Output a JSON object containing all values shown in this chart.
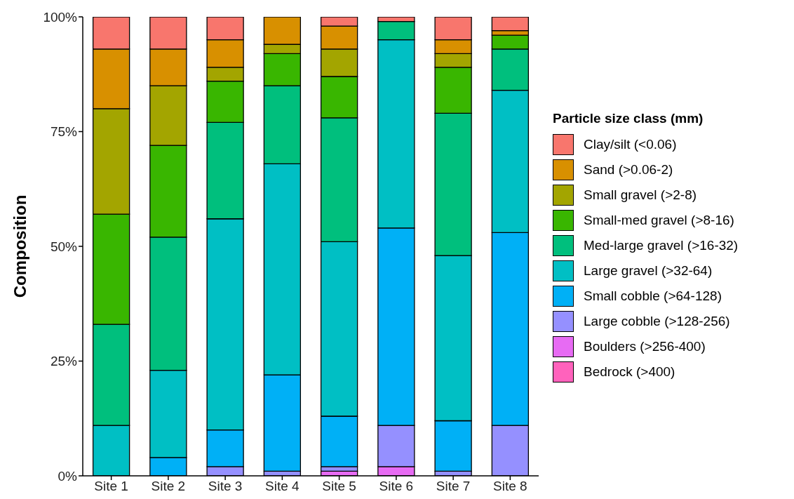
{
  "chart_data": {
    "type": "bar",
    "stacked": true,
    "ylabel": "Composition",
    "legend_title": "Particle size class (mm)",
    "legend": "right",
    "grid": false,
    "categories": [
      "Site 1",
      "Site 2",
      "Site 3",
      "Site 4",
      "Site 5",
      "Site 6",
      "Site 7",
      "Site 8"
    ],
    "ylim": [
      0,
      100
    ],
    "yticks": [
      {
        "value": 0,
        "label": "0%"
      },
      {
        "value": 25,
        "label": "25%"
      },
      {
        "value": 50,
        "label": "50%"
      },
      {
        "value": 75,
        "label": "75%"
      },
      {
        "value": 100,
        "label": "100%"
      }
    ],
    "series": [
      {
        "name": "Bedrock (>400)",
        "color": "#ff62bc",
        "values": [
          0,
          0,
          0,
          0,
          0,
          0,
          0,
          0
        ]
      },
      {
        "name": "Boulders (>256-400)",
        "color": "#e76bf3",
        "values": [
          0,
          0,
          0,
          0,
          1,
          2,
          0,
          0
        ]
      },
      {
        "name": "Large cobble (>128-256)",
        "color": "#9590ff",
        "values": [
          0,
          0,
          2,
          1,
          1,
          9,
          1,
          11
        ]
      },
      {
        "name": "Small cobble (>64-128)",
        "color": "#00b0f6",
        "values": [
          0,
          4,
          8,
          21,
          11,
          43,
          11,
          42
        ]
      },
      {
        "name": "Large gravel (>32-64)",
        "color": "#00bfc4",
        "values": [
          11,
          19,
          46,
          46,
          38,
          41,
          36,
          31
        ]
      },
      {
        "name": "Med-large gravel (>16-32)",
        "color": "#00bf7d",
        "values": [
          22,
          29,
          21,
          17,
          27,
          4,
          31,
          9
        ]
      },
      {
        "name": "Small-med gravel (>8-16)",
        "color": "#39b600",
        "values": [
          24,
          20,
          9,
          7,
          9,
          0,
          10,
          3
        ]
      },
      {
        "name": "Small gravel (>2-8)",
        "color": "#a3a500",
        "values": [
          23,
          13,
          3,
          2,
          6,
          0,
          3,
          0
        ]
      },
      {
        "name": "Sand (>0.06-2)",
        "color": "#d89000",
        "values": [
          13,
          8,
          6,
          6,
          5,
          0,
          3,
          1
        ]
      },
      {
        "name": "Clay/silt (<0.06)",
        "color": "#f8766d",
        "values": [
          7,
          7,
          5,
          0,
          2,
          1,
          5,
          3
        ]
      }
    ]
  }
}
